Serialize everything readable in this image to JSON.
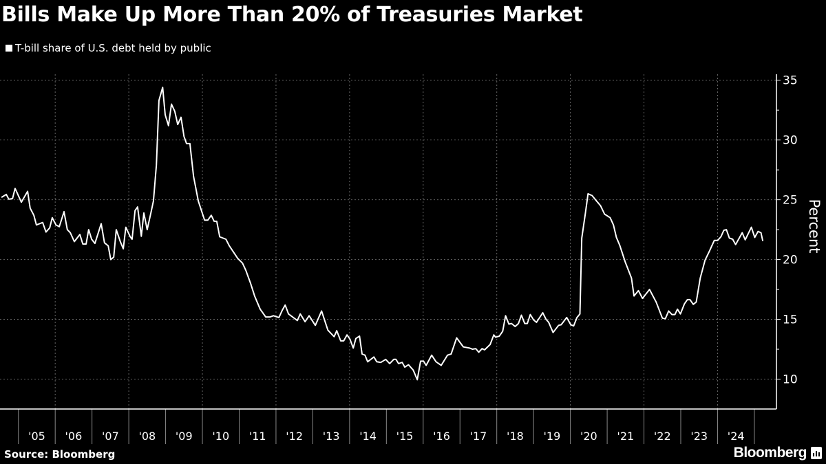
{
  "header": {
    "title": "Bills Make Up More Than 20% of Treasuries Market",
    "legend_label": "T-bill share of U.S. debt held by public"
  },
  "footer": {
    "source": "Source: Bloomberg",
    "logo_text": "Bloomberg"
  },
  "colors": {
    "background": "#000000",
    "line": "#ffffff",
    "grid": "#666666"
  },
  "chart_data": {
    "type": "line",
    "title": "Bills Make Up More Than 20% of Treasuries Market",
    "ylabel": "Percent",
    "xlabel": "",
    "xlim": [
      2004.5,
      2025.6
    ],
    "ylim": [
      7.5,
      35.5
    ],
    "y_axis_position": "right",
    "grid": true,
    "y_ticks": [
      10,
      15,
      20,
      25,
      30,
      35
    ],
    "y_tick_labels": [
      "10",
      "15",
      "20",
      "25",
      "30",
      "35"
    ],
    "x_tick_labels": [
      "'05",
      "'06",
      "'07",
      "'08",
      "'09",
      "'10",
      "'11",
      "'12",
      "'13",
      "'14",
      "'15",
      "'16",
      "'17",
      "'18",
      "'19",
      "'20",
      "'21",
      "'22",
      "'23",
      "'24"
    ],
    "x_tick_years": [
      2005,
      2006,
      2007,
      2008,
      2009,
      2010,
      2011,
      2012,
      2013,
      2014,
      2015,
      2016,
      2017,
      2018,
      2019,
      2020,
      2021,
      2022,
      2023,
      2024
    ],
    "series": [
      {
        "name": "T-bill share of U.S. debt held by public",
        "x": [
          2004.54,
          2004.67,
          2004.74,
          2004.84,
          2004.91,
          2005.08,
          2005.25,
          2005.32,
          2005.42,
          2005.49,
          2005.66,
          2005.75,
          2005.85,
          2005.92,
          2006.02,
          2006.11,
          2006.24,
          2006.33,
          2006.41,
          2006.52,
          2006.67,
          2006.75,
          2006.84,
          2006.91,
          2006.99,
          2007.08,
          2007.25,
          2007.34,
          2007.44,
          2007.51,
          2007.59,
          2007.66,
          2007.77,
          2007.85,
          2007.92,
          2008.04,
          2008.09,
          2008.17,
          2008.24,
          2008.34,
          2008.41,
          2008.5,
          2008.6,
          2008.67,
          2008.75,
          2008.82,
          2008.92,
          2008.99,
          2009.08,
          2009.16,
          2009.25,
          2009.33,
          2009.42,
          2009.5,
          2009.57,
          2009.66,
          2009.76,
          2009.89,
          2010.06,
          2010.15,
          2010.24,
          2010.32,
          2010.39,
          2010.47,
          2010.64,
          2010.73,
          2010.96,
          2011.09,
          2011.18,
          2011.31,
          2011.42,
          2011.57,
          2011.72,
          2011.84,
          2011.93,
          2012.08,
          2012.17,
          2012.25,
          2012.34,
          2012.45,
          2012.58,
          2012.66,
          2012.79,
          2012.9,
          2013.07,
          2013.24,
          2013.41,
          2013.58,
          2013.65,
          2013.76,
          2013.84,
          2013.93,
          2014.01,
          2014.1,
          2014.17,
          2014.27,
          2014.34,
          2014.42,
          2014.49,
          2014.66,
          2014.74,
          2014.85,
          2014.98,
          2015.09,
          2015.2,
          2015.26,
          2015.33,
          2015.43,
          2015.5,
          2015.6,
          2015.73,
          2015.84,
          2015.93,
          2016.01,
          2016.08,
          2016.23,
          2016.35,
          2016.49,
          2016.66,
          2016.76,
          2016.91,
          2017.09,
          2017.26,
          2017.34,
          2017.43,
          2017.51,
          2017.6,
          2017.67,
          2017.82,
          2017.92,
          2017.97,
          2018.07,
          2018.16,
          2018.24,
          2018.33,
          2018.4,
          2018.5,
          2018.59,
          2018.67,
          2018.76,
          2018.83,
          2018.91,
          2019.0,
          2019.08,
          2019.25,
          2019.34,
          2019.41,
          2019.53,
          2019.68,
          2019.75,
          2019.9,
          2020.01,
          2020.09,
          2020.18,
          2020.26,
          2020.31,
          2020.41,
          2020.48,
          2020.59,
          2020.71,
          2020.82,
          2020.93,
          2021.08,
          2021.17,
          2021.25,
          2021.34,
          2021.49,
          2021.66,
          2021.73,
          2021.85,
          2021.96,
          2022.15,
          2022.33,
          2022.5,
          2022.58,
          2022.67,
          2022.76,
          2022.84,
          2022.91,
          2022.99,
          2023.1,
          2023.18,
          2023.25,
          2023.34,
          2023.42,
          2023.53,
          2023.66,
          2023.77,
          2023.91,
          2024.0,
          2024.09,
          2024.17,
          2024.24,
          2024.32,
          2024.41,
          2024.49,
          2024.67,
          2024.75,
          2024.92,
          2025.01,
          2025.1,
          2025.18,
          2025.23
        ],
        "y": [
          25.2,
          25.45,
          25.05,
          25.1,
          25.95,
          24.8,
          25.7,
          24.3,
          23.7,
          22.9,
          23.1,
          22.3,
          22.65,
          23.5,
          22.9,
          22.75,
          24.0,
          22.5,
          22.25,
          21.5,
          22.1,
          21.3,
          21.3,
          22.5,
          21.7,
          21.35,
          23.0,
          21.4,
          21.15,
          20.0,
          20.2,
          22.5,
          21.5,
          20.9,
          22.7,
          21.9,
          21.7,
          24.1,
          24.4,
          21.95,
          23.9,
          22.5,
          23.9,
          24.9,
          27.9,
          33.3,
          34.4,
          32.1,
          31.2,
          33.0,
          32.4,
          31.3,
          31.9,
          30.3,
          29.7,
          29.7,
          26.95,
          24.9,
          23.3,
          23.3,
          23.7,
          23.2,
          23.2,
          21.9,
          21.7,
          21.15,
          20.1,
          19.7,
          19.1,
          18.0,
          16.95,
          15.85,
          15.2,
          15.2,
          15.3,
          15.15,
          15.75,
          16.2,
          15.45,
          15.2,
          14.9,
          15.45,
          14.8,
          15.3,
          14.5,
          15.7,
          14.1,
          13.55,
          14.05,
          13.2,
          13.2,
          13.7,
          13.35,
          12.6,
          13.4,
          13.6,
          12.1,
          12.0,
          11.45,
          11.85,
          11.45,
          11.4,
          11.65,
          11.3,
          11.65,
          11.65,
          11.3,
          11.4,
          11.0,
          11.2,
          10.75,
          9.95,
          11.5,
          11.5,
          11.15,
          12.0,
          11.45,
          11.15,
          12.0,
          12.1,
          13.45,
          12.7,
          12.6,
          12.5,
          12.55,
          12.25,
          12.55,
          12.45,
          12.9,
          13.7,
          13.5,
          13.6,
          14.0,
          15.3,
          14.6,
          14.65,
          14.4,
          14.65,
          15.35,
          14.65,
          14.65,
          15.4,
          14.95,
          14.75,
          15.55,
          15.0,
          14.75,
          13.9,
          14.5,
          14.55,
          15.15,
          14.55,
          14.45,
          15.15,
          15.45,
          21.8,
          23.9,
          25.5,
          25.35,
          24.9,
          24.5,
          23.8,
          23.5,
          22.9,
          21.85,
          21.2,
          19.8,
          18.45,
          16.95,
          17.4,
          16.75,
          17.5,
          16.45,
          15.1,
          15.05,
          15.7,
          15.4,
          15.4,
          15.85,
          15.45,
          16.3,
          16.65,
          16.65,
          16.25,
          16.45,
          18.45,
          19.95,
          20.65,
          21.6,
          21.6,
          21.9,
          22.45,
          22.5,
          21.8,
          21.7,
          21.25,
          22.25,
          21.65,
          22.7,
          21.85,
          22.35,
          22.25,
          21.55
        ]
      }
    ]
  }
}
